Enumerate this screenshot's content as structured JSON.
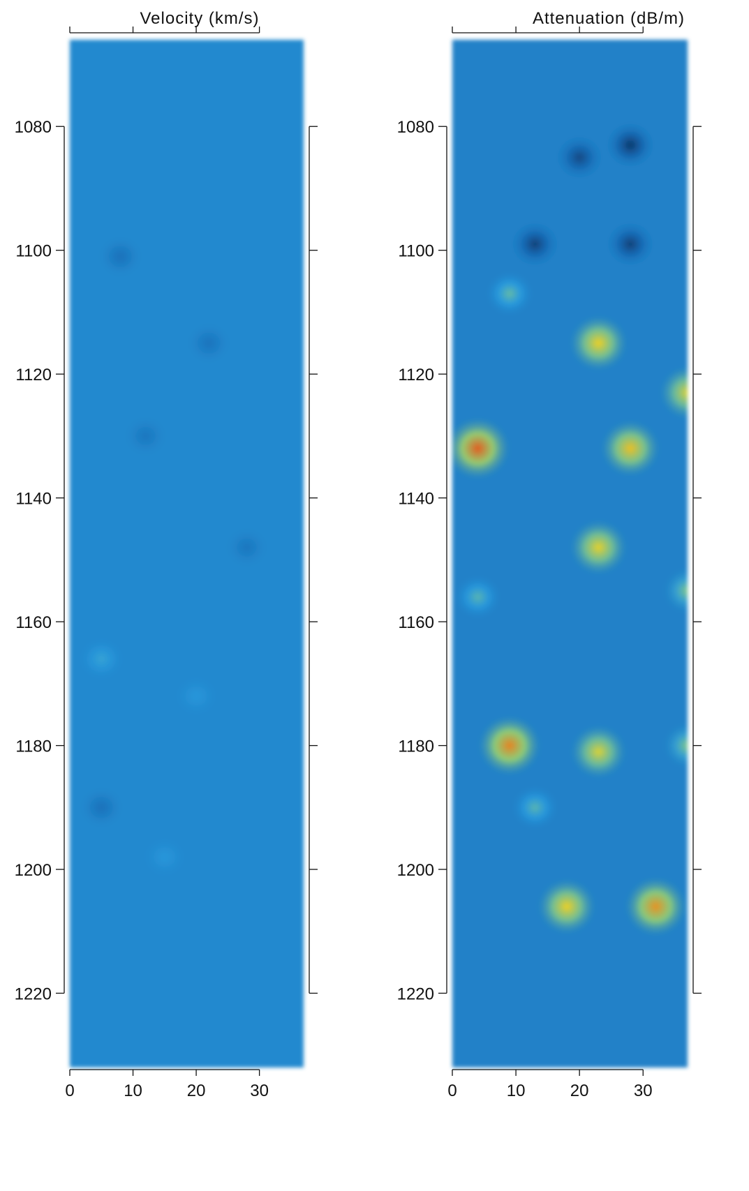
{
  "chart_data": [
    {
      "type": "heatmap",
      "title": "Velocity (km/s)",
      "xlabel": "",
      "ylabel": "",
      "xlim": [
        0,
        37
      ],
      "ylim": [
        1066,
        1232
      ],
      "y_reversed": true,
      "xticks": [
        0,
        10,
        20,
        30
      ],
      "xtick_labels": [
        "0",
        "10",
        "20",
        "30"
      ],
      "yticks": [
        1080,
        1100,
        1120,
        1140,
        1160,
        1180,
        1200,
        1220
      ],
      "ytick_labels": [
        "1080",
        "1100",
        "1120",
        "1140",
        "1160",
        "1180",
        "1200",
        "1220"
      ],
      "grid": false,
      "colormap": [
        "#0a1a3a",
        "#1565b0",
        "#2a9de0",
        "#9fd86a",
        "#f0d020",
        "#e0301a"
      ],
      "background_level": 0.33,
      "features": [
        {
          "x": 8,
          "y": 1101,
          "level": 0.24
        },
        {
          "x": 22,
          "y": 1115,
          "level": 0.25
        },
        {
          "x": 12,
          "y": 1130,
          "level": 0.26
        },
        {
          "x": 28,
          "y": 1148,
          "level": 0.26
        },
        {
          "x": 5,
          "y": 1166,
          "level": 0.42
        },
        {
          "x": 20,
          "y": 1172,
          "level": 0.38
        },
        {
          "x": 5,
          "y": 1190,
          "level": 0.24
        },
        {
          "x": 15,
          "y": 1198,
          "level": 0.38
        }
      ]
    },
    {
      "type": "heatmap",
      "title": "Attenuation (dB/m)",
      "xlabel": "",
      "ylabel": "",
      "xlim": [
        0,
        37
      ],
      "ylim": [
        1066,
        1232
      ],
      "y_reversed": true,
      "xticks": [
        0,
        10,
        20,
        30
      ],
      "xtick_labels": [
        "0",
        "10",
        "20",
        "30"
      ],
      "yticks": [
        1080,
        1100,
        1120,
        1140,
        1160,
        1180,
        1200,
        1220
      ],
      "ytick_labels": [
        "1080",
        "1100",
        "1120",
        "1140",
        "1160",
        "1180",
        "1200",
        "1220"
      ],
      "grid": false,
      "colormap": [
        "#0a1a3a",
        "#1565b0",
        "#2a9de0",
        "#9fd86a",
        "#f0d020",
        "#e0301a"
      ],
      "background_level": 0.3,
      "features": [
        {
          "x": 20,
          "y": 1085,
          "level": 0.12
        },
        {
          "x": 28,
          "y": 1083,
          "level": 0.08
        },
        {
          "x": 13,
          "y": 1099,
          "level": 0.1
        },
        {
          "x": 28,
          "y": 1099,
          "level": 0.1
        },
        {
          "x": 9,
          "y": 1107,
          "level": 0.5
        },
        {
          "x": 23,
          "y": 1115,
          "level": 0.8
        },
        {
          "x": 37,
          "y": 1123,
          "level": 0.75
        },
        {
          "x": 4,
          "y": 1132,
          "level": 0.95
        },
        {
          "x": 28,
          "y": 1132,
          "level": 0.82
        },
        {
          "x": 23,
          "y": 1148,
          "level": 0.78
        },
        {
          "x": 4,
          "y": 1156,
          "level": 0.48
        },
        {
          "x": 37,
          "y": 1155,
          "level": 0.55
        },
        {
          "x": 9,
          "y": 1180,
          "level": 0.9
        },
        {
          "x": 23,
          "y": 1181,
          "level": 0.75
        },
        {
          "x": 37,
          "y": 1180,
          "level": 0.55
        },
        {
          "x": 13,
          "y": 1190,
          "level": 0.48
        },
        {
          "x": 18,
          "y": 1206,
          "level": 0.8
        },
        {
          "x": 32,
          "y": 1206,
          "level": 0.88
        }
      ]
    }
  ]
}
